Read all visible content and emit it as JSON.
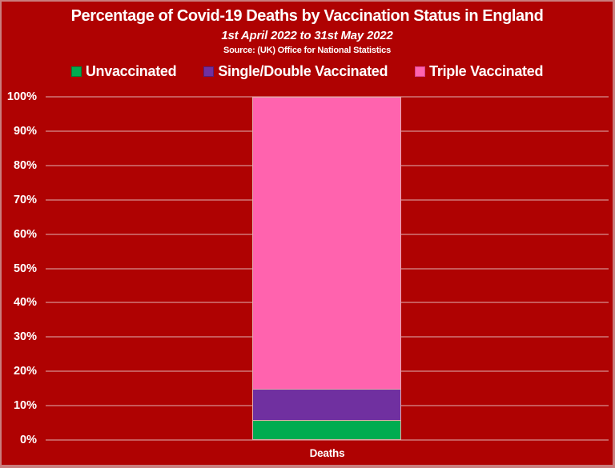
{
  "header": {
    "title": "Percentage of Covid-19 Deaths by Vaccination Status in England",
    "subtitle": "1st April 2022 to 31st May 2022",
    "source": "Source: (UK) Office for National Statistics"
  },
  "legend": {
    "items": [
      {
        "label": "Unvaccinated",
        "color": "#00AC50",
        "border_color": "#00813B"
      },
      {
        "label": "Single/Double Vaccinated",
        "color": "#7030A0",
        "border_color": "#53207A"
      },
      {
        "label": "Triple Vaccinated",
        "color": "#FF63AE",
        "border_color": "#D84390"
      }
    ]
  },
  "x_axis": {
    "label": "Deaths"
  },
  "colors": {
    "background": "#AF0202",
    "frame_border": "#C97D7D",
    "gridline": "#E2B1B1",
    "text": "#FFFFFF",
    "segment_border": "#E2A9A9"
  },
  "chart_data": {
    "type": "bar",
    "stacked": true,
    "title": "Percentage of Covid-19 Deaths by Vaccination Status in England",
    "subtitle": "1st April 2022 to 31st May 2022",
    "source_note": "Source: (UK) Office for National Statistics",
    "categories": [
      "Deaths"
    ],
    "series": [
      {
        "name": "Unvaccinated",
        "values": [
          5.7
        ],
        "color": "#00AC50"
      },
      {
        "name": "Single/Double Vaccinated",
        "values": [
          8.9
        ],
        "color": "#7030A0"
      },
      {
        "name": "Triple Vaccinated",
        "values": [
          85.4
        ],
        "color": "#FF63AE"
      }
    ],
    "xlabel": "",
    "ylabel": "",
    "ylim": [
      0,
      100
    ],
    "yticks": [
      "0%",
      "10%",
      "20%",
      "30%",
      "40%",
      "50%",
      "60%",
      "70%",
      "80%",
      "90%",
      "100%"
    ],
    "grid": true,
    "legend_position": "top",
    "background_color": "#AF0202"
  }
}
